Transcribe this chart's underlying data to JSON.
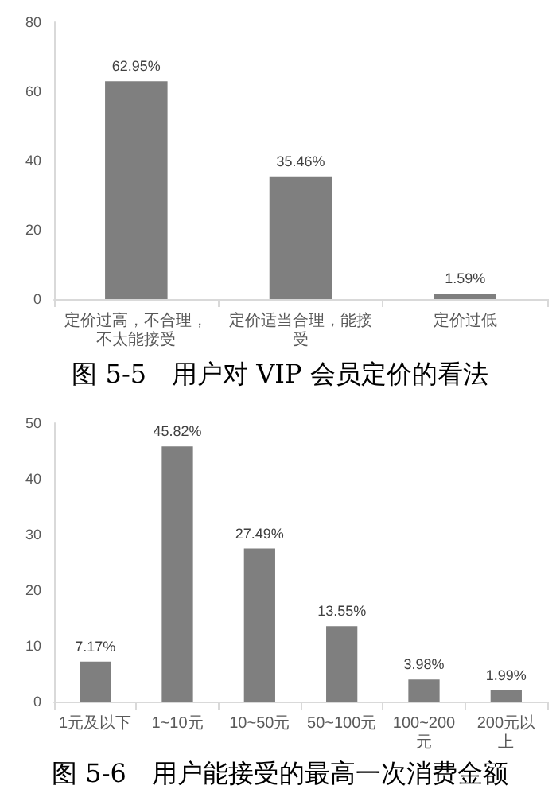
{
  "chart_data": [
    {
      "type": "bar",
      "title": "图 5-5　用户对 VIP 会员定价的看法",
      "categories": [
        "定价过高，不合理，不太能接受",
        "定价适当合理，能接受",
        "定价过低"
      ],
      "values": [
        62.95,
        35.46,
        1.59
      ],
      "value_labels": [
        "62.95%",
        "35.46%",
        "1.59%"
      ],
      "color": "#7f7f7f",
      "ylim": [
        0,
        80
      ],
      "yticks": [
        0,
        20,
        40,
        60,
        80
      ],
      "grid": false
    },
    {
      "type": "bar",
      "title": "图 5-6　用户能接受的最高一次消费金额",
      "categories": [
        "1元及以下",
        "1~10元",
        "10~50元",
        "50~100元",
        "100~200元",
        "200元以上"
      ],
      "values": [
        7.17,
        45.82,
        27.49,
        13.55,
        3.98,
        1.99
      ],
      "value_labels": [
        "7.17%",
        "45.82%",
        "27.49%",
        "13.55%",
        "3.98%",
        "1.99%"
      ],
      "color": "#7f7f7f",
      "ylim": [
        0,
        50
      ],
      "yticks": [
        0,
        10,
        20,
        30,
        40,
        50
      ],
      "grid": false
    }
  ]
}
